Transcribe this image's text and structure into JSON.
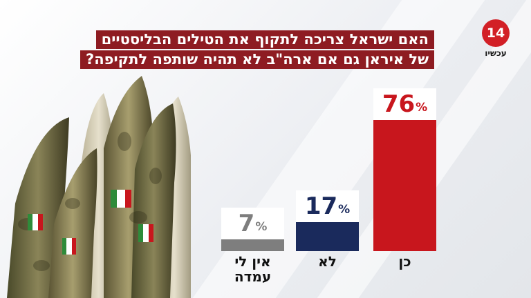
{
  "title_lines": [
    "האם ישראל צריכה לתקוף את הטילים הבליסטיים",
    "של איראן גם אם ארה\"ב לא תהיה שותפה לתקיפה?"
  ],
  "logo": {
    "number": "14",
    "word": "עכשיו",
    "color": "#d21f26"
  },
  "chart_data": {
    "type": "bar",
    "title": "האם ישראל צריכה לתקוף את הטילים הבליסטיים של איראן גם אם ארה\"ב לא תהיה שותפה לתקיפה?",
    "categories": [
      "כן",
      "לא",
      "אין לי עמדה"
    ],
    "values": [
      76,
      17,
      7
    ],
    "value_labels": [
      "76",
      "17",
      "7"
    ],
    "unit": "%",
    "colors": [
      "#c8161d",
      "#1a2a5c",
      "#7e7e7e"
    ],
    "ylim": [
      0,
      100
    ],
    "grid": false,
    "legend": "none"
  }
}
